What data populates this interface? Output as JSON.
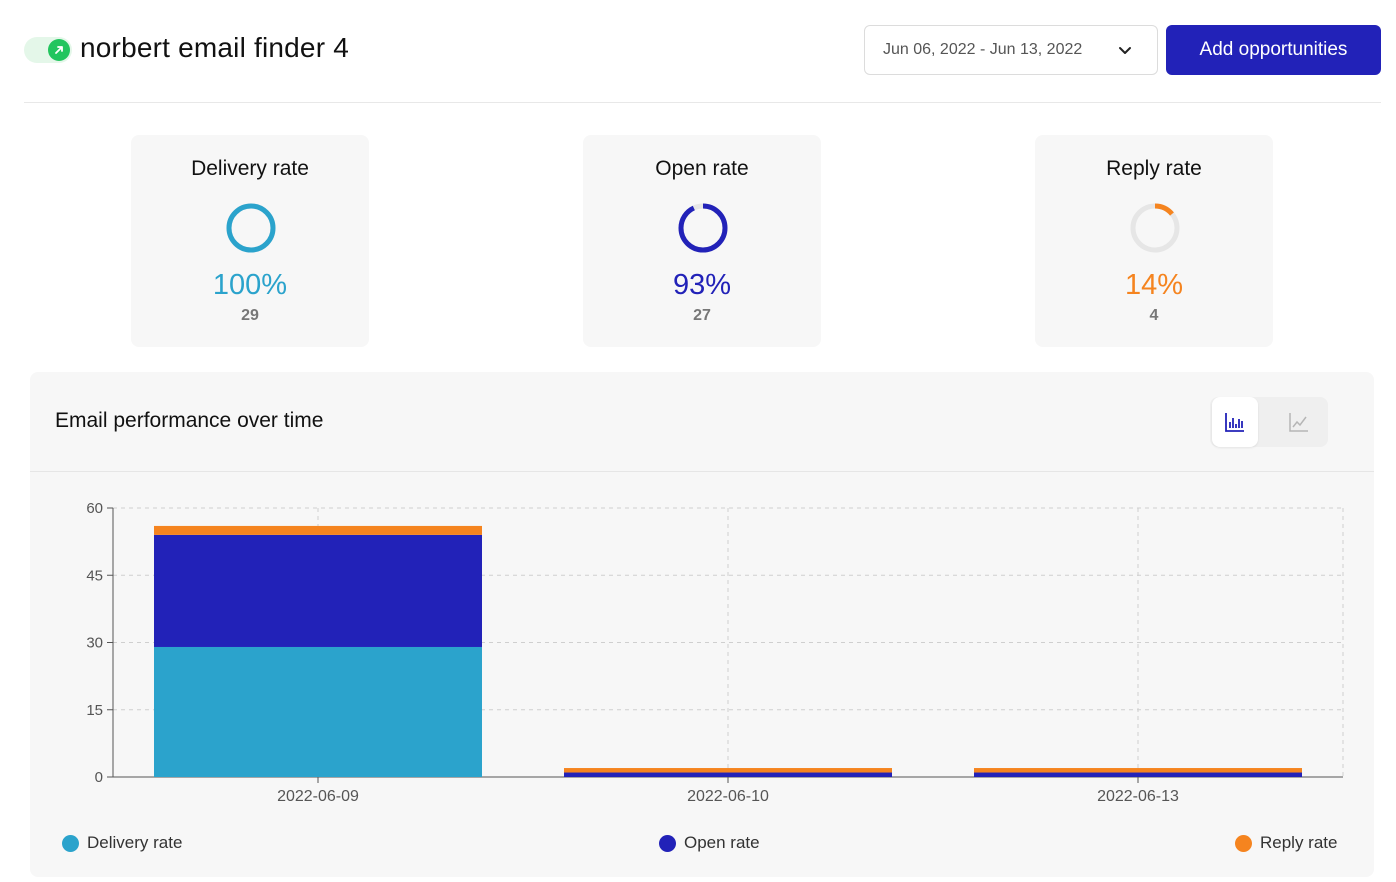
{
  "header": {
    "campaign_title": "norbert email finder 4",
    "date_range": "Jun 06, 2022 - Jun 13, 2022",
    "add_button_label": "Add opportunities"
  },
  "stats": [
    {
      "title": "Delivery rate",
      "percent": "100%",
      "count": "29",
      "fraction": 1.0,
      "color": "#2ba3cc"
    },
    {
      "title": "Open rate",
      "percent": "93%",
      "count": "27",
      "fraction": 0.93,
      "color": "#2222b8"
    },
    {
      "title": "Reply rate",
      "percent": "14%",
      "count": "4",
      "fraction": 0.14,
      "color": "#f5841f"
    }
  ],
  "panel": {
    "title": "Email performance over time",
    "view_icons": [
      "bar-chart-icon",
      "line-chart-icon"
    ]
  },
  "colors": {
    "delivery": "#2ba3cc",
    "open": "#2222b8",
    "reply": "#f5841f",
    "brand": "#2222b8",
    "toggle_on": "#22c55e"
  },
  "chart_data": {
    "type": "bar",
    "stacked": true,
    "categories": [
      "2022-06-09",
      "2022-06-10",
      "2022-06-13"
    ],
    "series": [
      {
        "name": "Delivery rate",
        "values": [
          29,
          0,
          0
        ],
        "color": "#2ba3cc"
      },
      {
        "name": "Open rate",
        "values": [
          25,
          1,
          1
        ],
        "color": "#2222b8"
      },
      {
        "name": "Reply rate",
        "values": [
          2,
          1,
          1
        ],
        "color": "#f5841f"
      }
    ],
    "yticks": [
      0,
      15,
      30,
      45,
      60
    ],
    "ylim": [
      0,
      60
    ],
    "grid": true,
    "legend": "bottom"
  }
}
